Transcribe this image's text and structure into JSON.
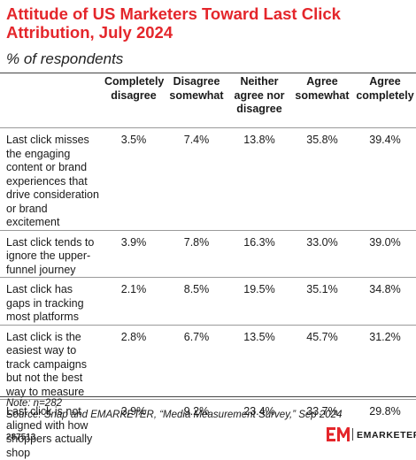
{
  "header": {
    "title": "Attitude of US Marketers Toward Last Click Attribution, July 2024",
    "subtitle": "% of respondents"
  },
  "chart_data": {
    "type": "table",
    "title": "Attitude of US Marketers Toward Last Click Attribution, July 2024",
    "subtitle": "% of respondents",
    "columns": [
      "Completely disagree",
      "Disagree somewhat",
      "Neither agree nor disagree",
      "Agree somewhat",
      "Agree completely"
    ],
    "rows": [
      {
        "label": "Last click misses the engaging content or brand experiences that drive consideration or brand excitement",
        "values": [
          "3.5%",
          "7.4%",
          "13.8%",
          "35.8%",
          "39.4%"
        ]
      },
      {
        "label": "Last click tends to ignore the upper-funnel journey",
        "values": [
          "3.9%",
          "7.8%",
          "16.3%",
          "33.0%",
          "39.0%"
        ]
      },
      {
        "label": "Last click has gaps in tracking most platforms",
        "values": [
          "2.1%",
          "8.5%",
          "19.5%",
          "35.1%",
          "34.8%"
        ]
      },
      {
        "label": "Last click is the easiest way to track campaigns but not the best way to measure",
        "values": [
          "2.8%",
          "6.7%",
          "13.5%",
          "45.7%",
          "31.2%"
        ]
      },
      {
        "label": "Last click is not aligned with how shoppers actually shop",
        "values": [
          "3.9%",
          "9.2%",
          "23.4%",
          "33.7%",
          "29.8%"
        ]
      }
    ]
  },
  "footer": {
    "note": "Note: n=282",
    "source": "Source: Snap and EMARKETER, “Media Measurement Survey,” Sep 2024",
    "chart_id": "287513",
    "brand": "EMARKETER",
    "brand_color": "#e4262b"
  }
}
